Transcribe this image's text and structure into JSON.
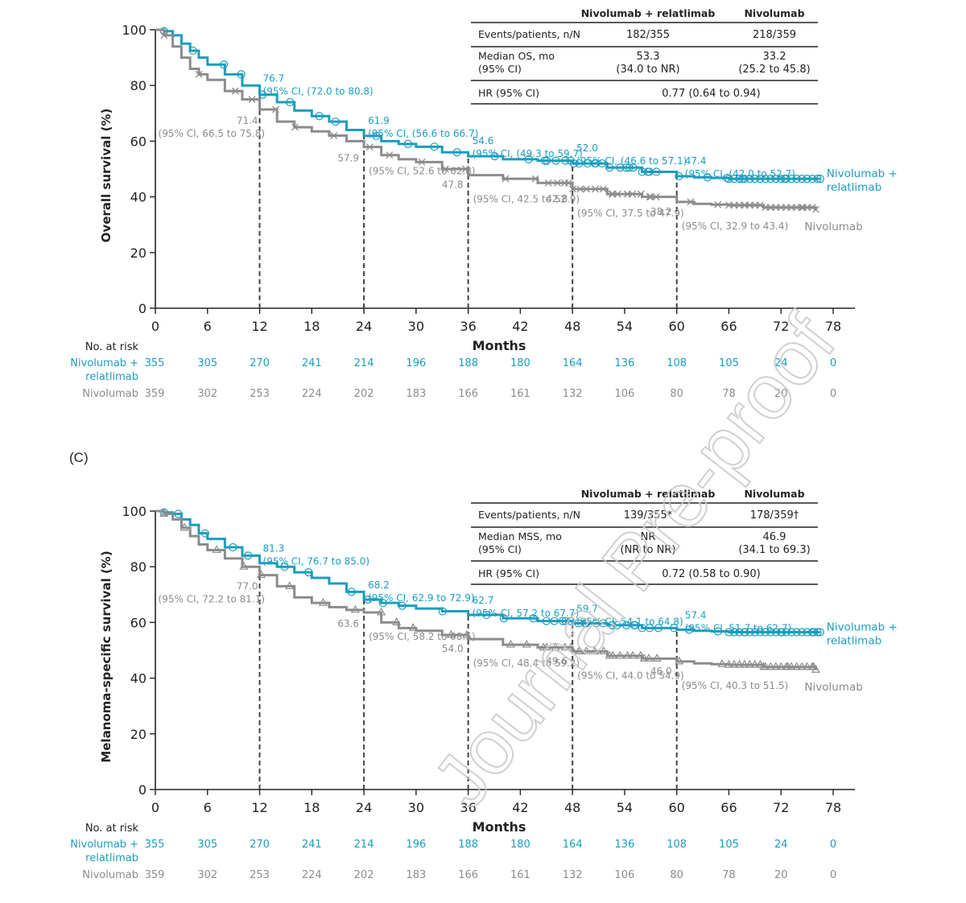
{
  "panel_letter": "(C)",
  "watermark": "Journal Pre-proof",
  "colors": {
    "nivo_rela": "#1b9dbf",
    "nivo": "#8c8c8c",
    "axis": "#222222",
    "dash": "#444444"
  },
  "chart_data": [
    {
      "type": "line",
      "title": "",
      "xlabel": "Months",
      "ylabel": "Overall survival (%)",
      "xlim": [
        0,
        78
      ],
      "ylim": [
        0,
        100
      ],
      "x_ticks": [
        "0",
        "6",
        "12",
        "18",
        "24",
        "30",
        "36",
        "42",
        "48",
        "54",
        "60",
        "66",
        "72",
        "78"
      ],
      "y_ticks": [
        "0",
        "20",
        "40",
        "60",
        "80",
        "100"
      ],
      "landmarks": [
        12,
        24,
        36,
        48,
        60
      ],
      "series": [
        {
          "name": "Nivolumab + relatlimab",
          "name_lines": [
            "Nivolumab +",
            "relatlimab"
          ],
          "color": "#1b9dbf",
          "marker": "circle",
          "x": [
            0,
            1,
            2,
            3,
            4,
            5,
            6,
            8,
            10,
            12,
            14,
            16,
            18,
            20,
            22,
            24,
            26,
            28,
            30,
            33,
            36,
            40,
            44,
            48,
            52,
            56,
            60,
            62,
            64,
            66,
            70,
            76.5
          ],
          "y": [
            100,
            99.5,
            98,
            95,
            92.5,
            90,
            87.5,
            84,
            80,
            76.7,
            74,
            71,
            69,
            67,
            64,
            61.9,
            60,
            59,
            58,
            56,
            54.6,
            53.5,
            53,
            52,
            50.5,
            49,
            47.4,
            47,
            46.8,
            46.5,
            46.5,
            46.5
          ]
        },
        {
          "name": "Nivolumab",
          "name_lines": [
            "Nivolumab"
          ],
          "color": "#8c8c8c",
          "marker": "x",
          "x": [
            0,
            1,
            2,
            3,
            4,
            5,
            6,
            8,
            10,
            12,
            14,
            16,
            18,
            20,
            22,
            24,
            26,
            28,
            30,
            33,
            36,
            40,
            44,
            48,
            52,
            56,
            60,
            62,
            64,
            66,
            70,
            76
          ],
          "y": [
            100,
            98,
            94,
            90,
            86,
            84,
            82,
            78,
            75,
            71.4,
            67,
            65,
            63.5,
            62,
            60,
            57.9,
            55,
            53.5,
            52.5,
            50,
            47.8,
            46.5,
            45,
            42.8,
            41,
            40,
            38.2,
            37.5,
            37.2,
            37,
            36.2,
            35.5
          ]
        }
      ],
      "annotations": {
        "nivo_rela": [
          {
            "value": "76.7",
            "ci": "(95% CI, (72.0 to 80.8)"
          },
          {
            "value": "61.9",
            "ci": "(95% CI, (56.6 to 66.7)"
          },
          {
            "value": "54.6",
            "ci": "(95% CI, (49.3 to 59.7)"
          },
          {
            "value": "52.0",
            "ci": "(95% CI, (46.6 to 57.1)"
          },
          {
            "value": "47.4",
            "ci": "(95% CI, (42.0 to 52.7)"
          }
        ],
        "nivo": [
          {
            "value": "71.4",
            "ci": "(95% CI, 66.5 to 75.8)"
          },
          {
            "value": "57.9",
            "ci": "(95% CI, 52.6 to 62.8)"
          },
          {
            "value": "47.8",
            "ci": "(95% CI, 42.5 to 52.9)"
          },
          {
            "value": "42.8",
            "ci": "(95% CI, 37.5 to 47.9)"
          },
          {
            "value": "38.2",
            "ci": "(95% CI, 32.9 to 43.4)"
          }
        ]
      },
      "table": {
        "header": [
          "",
          "Nivolumab + relatlimab",
          "Nivolumab"
        ],
        "rows": [
          {
            "label": [
              "Events/patients, n/N"
            ],
            "v1": [
              "182/355"
            ],
            "v2": [
              "218/359"
            ]
          },
          {
            "label": [
              "Median OS, mo",
              "(95% CI)"
            ],
            "v1": [
              "53.3",
              "(34.0 to NR)"
            ],
            "v2": [
              "33.2",
              "(25.2 to 45.8)"
            ]
          },
          {
            "label": [
              "HR (95% CI)"
            ],
            "merged": "0.77 (0.64 to 0.94)"
          }
        ]
      },
      "at_risk": {
        "title": "No. at risk",
        "rows": [
          {
            "label_lines": [
              "Nivolumab +",
              "relatlimab"
            ],
            "color": "#1b9dbf",
            "values": [
              "355",
              "305",
              "270",
              "241",
              "214",
              "196",
              "188",
              "180",
              "164",
              "136",
              "108",
              "105",
              "24",
              "0"
            ]
          },
          {
            "label_lines": [
              "Nivolumab"
            ],
            "color": "#8c8c8c",
            "values": [
              "359",
              "302",
              "253",
              "224",
              "202",
              "183",
              "166",
              "161",
              "132",
              "106",
              "80",
              "78",
              "20",
              "0"
            ]
          }
        ]
      }
    },
    {
      "type": "line",
      "title": "",
      "xlabel": "Months",
      "ylabel": "Melanoma-specific survival (%)",
      "xlim": [
        0,
        78
      ],
      "ylim": [
        0,
        100
      ],
      "x_ticks": [
        "0",
        "6",
        "12",
        "18",
        "24",
        "30",
        "36",
        "42",
        "48",
        "54",
        "60",
        "66",
        "72",
        "78"
      ],
      "y_ticks": [
        "0",
        "20",
        "40",
        "60",
        "80",
        "100"
      ],
      "landmarks": [
        12,
        24,
        36,
        48,
        60
      ],
      "series": [
        {
          "name": "Nivolumab + relatlimab",
          "name_lines": [
            "Nivolumab +",
            "relatlimab"
          ],
          "color": "#1b9dbf",
          "marker": "circle",
          "x": [
            0,
            1,
            2,
            3,
            4,
            5,
            6,
            8,
            10,
            12,
            14,
            16,
            18,
            20,
            22,
            24,
            26,
            28,
            30,
            33,
            36,
            40,
            44,
            48,
            52,
            56,
            60,
            62,
            64,
            66,
            70,
            76.5
          ],
          "y": [
            100,
            99.5,
            99,
            97,
            95,
            92,
            90,
            87,
            84,
            81.3,
            80,
            78,
            76,
            74,
            71,
            68.2,
            67,
            66,
            65,
            64,
            62.7,
            61.5,
            60.5,
            59.7,
            59,
            58,
            57.4,
            57,
            56.8,
            56.5,
            56.5,
            56.5
          ]
        },
        {
          "name": "Nivolumab",
          "name_lines": [
            "Nivolumab"
          ],
          "color": "#8c8c8c",
          "marker": "triangle",
          "x": [
            0,
            1,
            2,
            3,
            4,
            5,
            6,
            8,
            10,
            12,
            14,
            16,
            18,
            20,
            22,
            24,
            26,
            28,
            30,
            33,
            36,
            40,
            44,
            48,
            52,
            56,
            60,
            62,
            64,
            66,
            70,
            76
          ],
          "y": [
            100,
            99,
            97,
            94,
            91,
            88,
            86,
            83,
            80,
            77.0,
            73,
            69,
            67,
            65.5,
            64.5,
            63.6,
            60,
            58,
            57,
            55.5,
            54.0,
            52,
            51,
            49.6,
            48,
            47,
            46.0,
            45.3,
            45,
            44.8,
            44,
            43
          ]
        }
      ],
      "annotations": {
        "nivo_rela": [
          {
            "value": "81.3",
            "ci": "(95% CI, 76.7 to 85.0)"
          },
          {
            "value": "68.2",
            "ci": "(95% CI, 62.9 to 72.9)"
          },
          {
            "value": "62.7",
            "ci": "(95% CI, 57.2 to 67.7)"
          },
          {
            "value": "59.7",
            "ci": "(95% CI, 54.1 to 64.8)"
          },
          {
            "value": "57.4",
            "ci": "(95% CI, 51.7 to 62.7)"
          }
        ],
        "nivo": [
          {
            "value": "77.0",
            "ci": "(95% CI, 72.2 to 81.1)"
          },
          {
            "value": "63.6",
            "ci": "(95% CI, 58.2 to 68.5)"
          },
          {
            "value": "54.0",
            "ci": "(95% CI, 48.4 to 59.2)"
          },
          {
            "value": "49.6",
            "ci": "(95% CI, 44.0 to 54.9)"
          },
          {
            "value": "46.0",
            "ci": "(95% CI, 40.3 to 51.5)"
          }
        ]
      },
      "table": {
        "header": [
          "",
          "Nivolumab + relatlimab",
          "Nivolumab"
        ],
        "rows": [
          {
            "label": [
              "Events/patients, n/N"
            ],
            "v1": [
              "139/355*"
            ],
            "v2": [
              "178/359†"
            ]
          },
          {
            "label": [
              "Median MSS, mo",
              "(95% CI)"
            ],
            "v1": [
              "NR",
              "(NR to NR)"
            ],
            "v2": [
              "46.9",
              "(34.1 to 69.3)"
            ]
          },
          {
            "label": [
              "HR (95% CI)"
            ],
            "merged": "0.72 (0.58 to 0.90)"
          }
        ]
      },
      "at_risk": {
        "title": "No. at risk",
        "rows": [
          {
            "label_lines": [
              "Nivolumab +",
              "relatlimab"
            ],
            "color": "#1b9dbf",
            "values": [
              "355",
              "305",
              "270",
              "241",
              "214",
              "196",
              "188",
              "180",
              "164",
              "136",
              "108",
              "105",
              "24",
              "0"
            ]
          },
          {
            "label_lines": [
              "Nivolumab"
            ],
            "color": "#8c8c8c",
            "values": [
              "359",
              "302",
              "253",
              "224",
              "202",
              "183",
              "166",
              "161",
              "132",
              "106",
              "80",
              "78",
              "20",
              "0"
            ]
          }
        ]
      }
    }
  ]
}
